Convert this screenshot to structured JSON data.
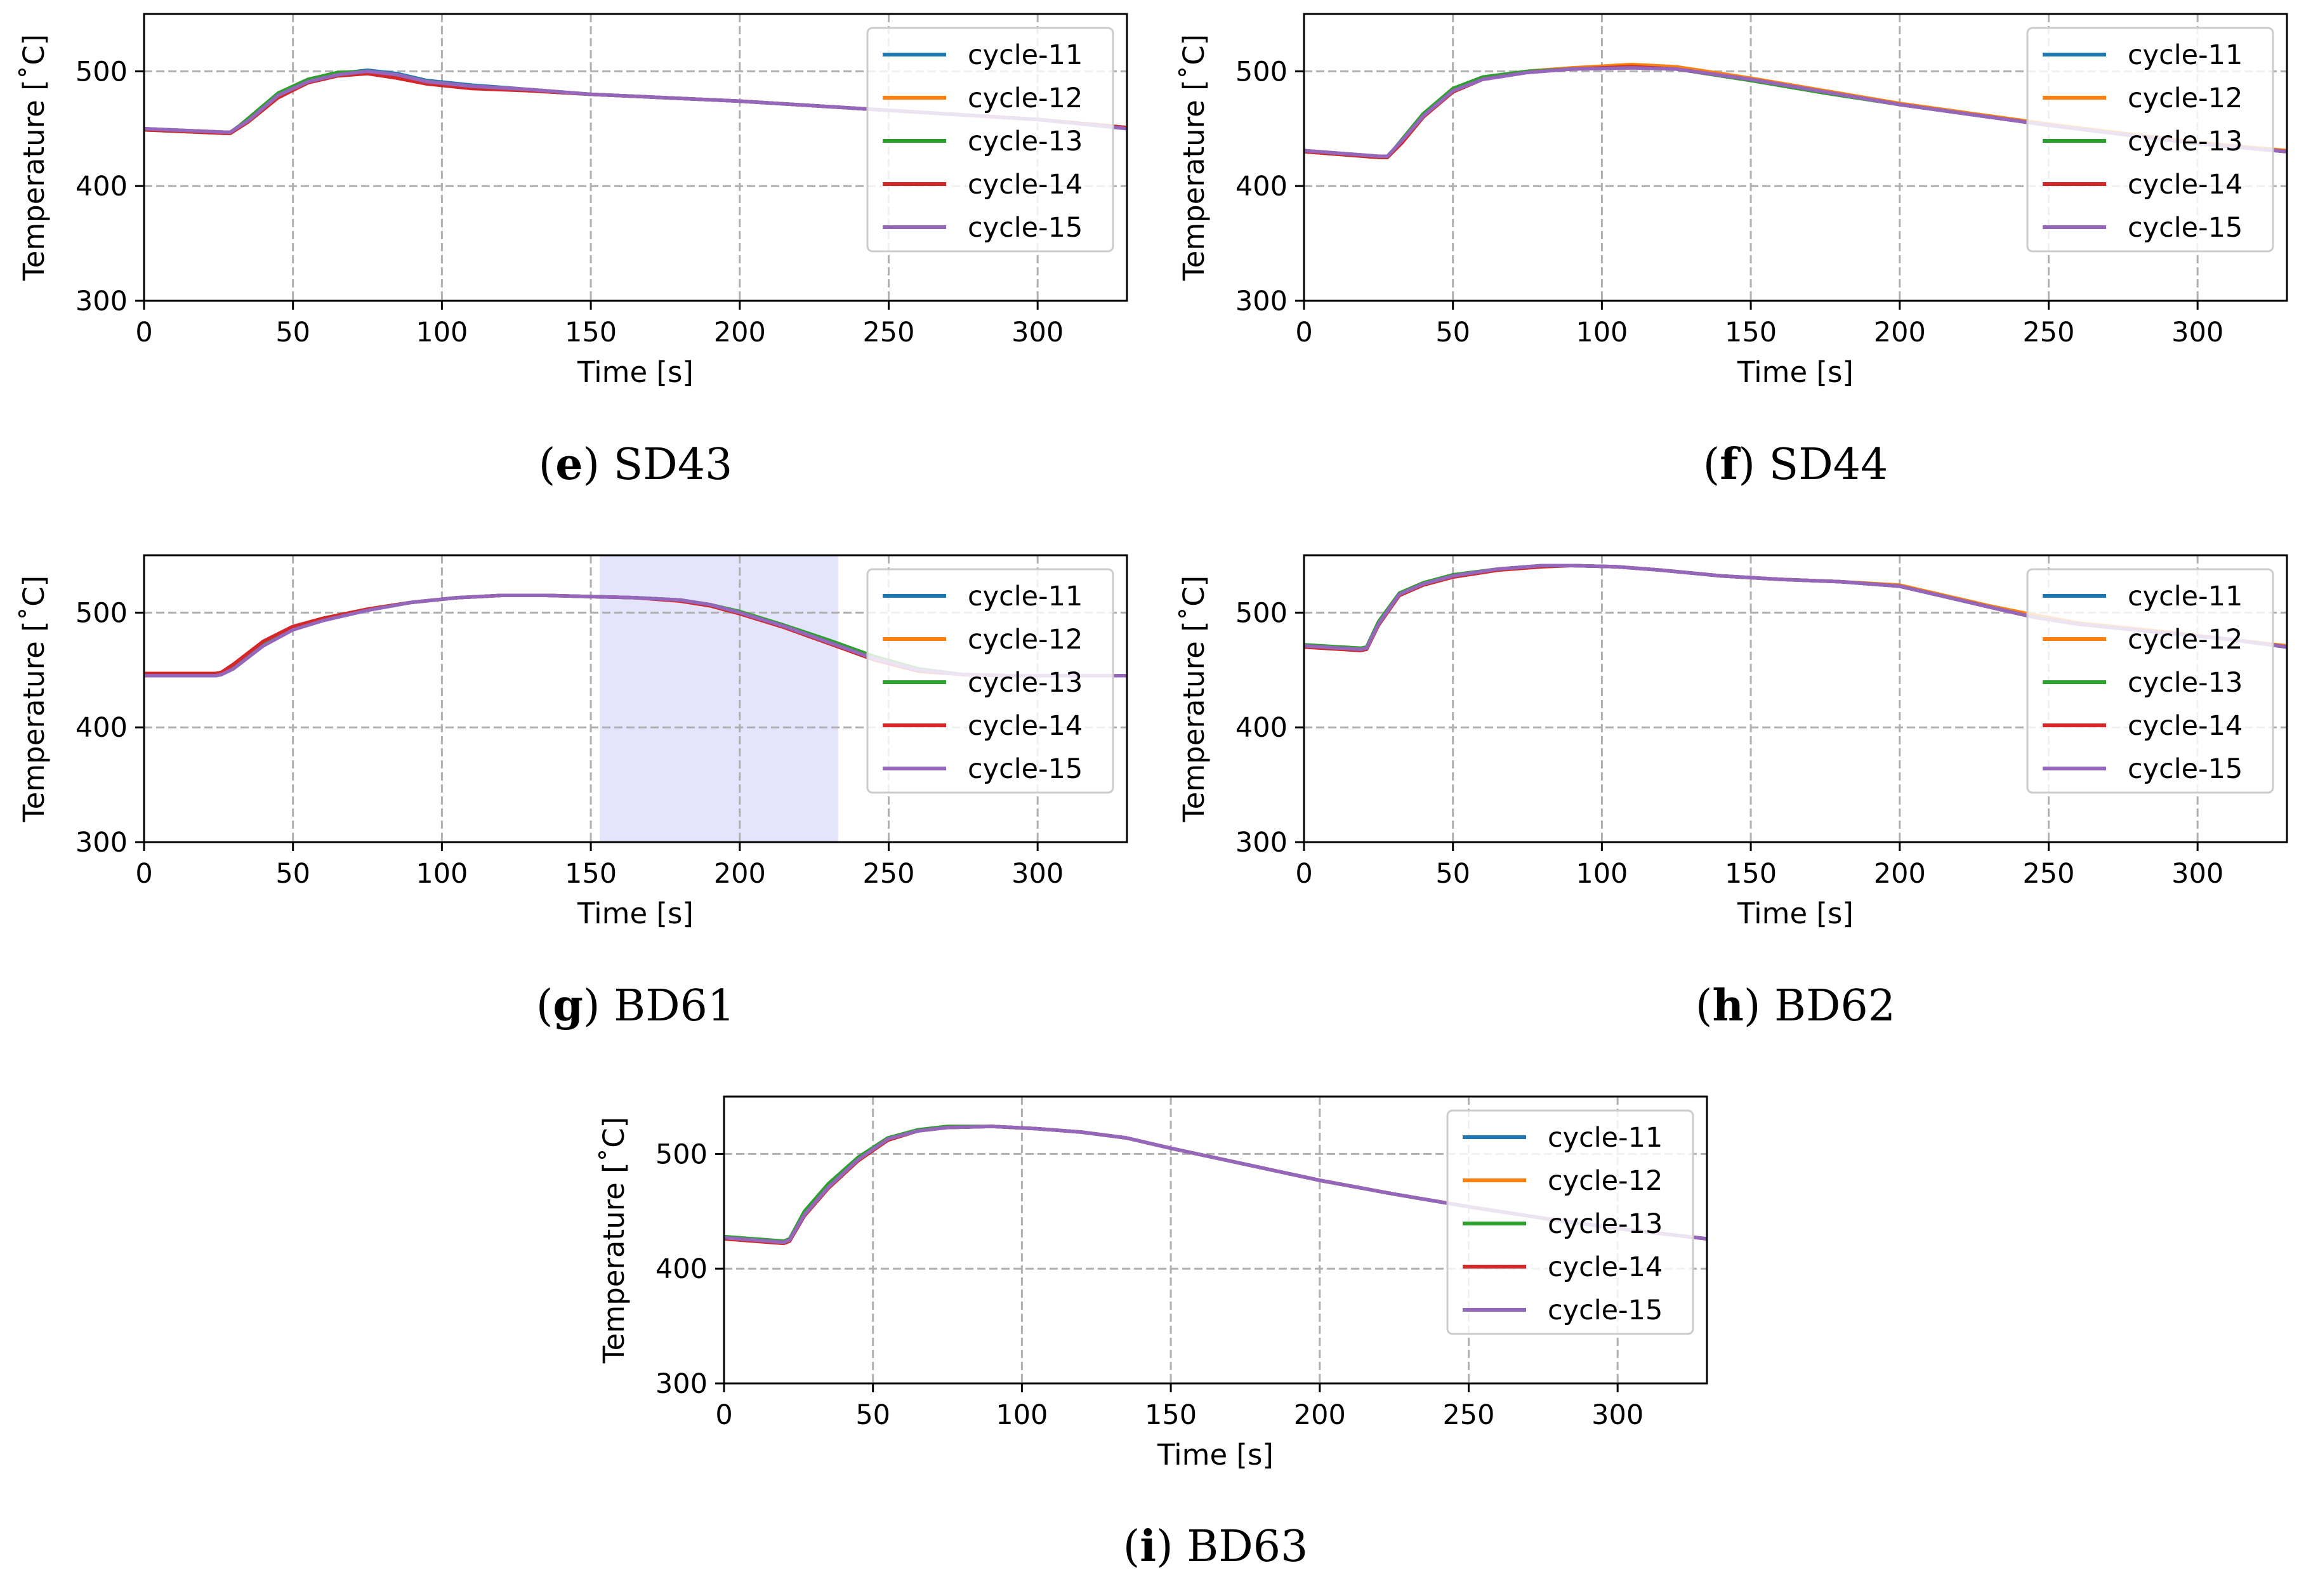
{
  "figure": {
    "series_colors": {
      "cycle-11": "#1f77b4",
      "cycle-12": "#ff7f0e",
      "cycle-13": "#2ca02c",
      "cycle-14": "#d62728",
      "cycle-15": "#9467bd"
    },
    "highlight_color": "#e4e4fc"
  },
  "chart_data": [
    {
      "id": "SD43",
      "type": "line",
      "caption_letter": "e",
      "caption_text": "SD43",
      "xlabel": "Time [s]",
      "ylabel": "Temperature [˚C]",
      "xlim": [
        0,
        330
      ],
      "ylim": [
        300,
        550
      ],
      "xticks": [
        0,
        50,
        100,
        150,
        200,
        250,
        300
      ],
      "yticks": [
        300,
        400,
        500
      ],
      "grid": true,
      "legend_position": "top-right",
      "x": [
        0,
        27,
        29,
        35,
        45,
        55,
        65,
        75,
        85,
        95,
        110,
        130,
        150,
        175,
        200,
        225,
        250,
        275,
        300,
        330
      ],
      "series": [
        {
          "name": "cycle-11",
          "values": [
            450,
            447,
            447,
            458,
            480,
            492,
            498,
            501,
            498,
            492,
            488,
            484,
            480,
            477,
            474,
            470,
            466,
            462,
            458,
            451
          ]
        },
        {
          "name": "cycle-12",
          "values": [
            450,
            447,
            447,
            457,
            479,
            491,
            497,
            500,
            497,
            491,
            487,
            484,
            480,
            477,
            474,
            470,
            466,
            462,
            458,
            451
          ]
        },
        {
          "name": "cycle-13",
          "values": [
            449,
            446,
            446,
            459,
            481,
            493,
            499,
            500,
            496,
            490,
            486,
            483,
            480,
            477,
            474,
            470,
            466,
            462,
            458,
            451
          ]
        },
        {
          "name": "cycle-14",
          "values": [
            449,
            446,
            446,
            456,
            477,
            490,
            496,
            498,
            494,
            489,
            485,
            483,
            480,
            477,
            474,
            470,
            466,
            462,
            458,
            451
          ]
        },
        {
          "name": "cycle-15",
          "values": [
            450,
            447,
            447,
            457,
            479,
            491,
            497,
            500,
            497,
            491,
            487,
            484,
            480,
            477,
            474,
            470,
            466,
            462,
            458,
            450
          ]
        }
      ]
    },
    {
      "id": "SD44",
      "type": "line",
      "caption_letter": "f",
      "caption_text": "SD44",
      "xlabel": "Time [s]",
      "ylabel": "Temperature [˚C]",
      "xlim": [
        0,
        330
      ],
      "ylim": [
        300,
        550
      ],
      "xticks": [
        0,
        50,
        100,
        150,
        200,
        250,
        300
      ],
      "yticks": [
        300,
        400,
        500
      ],
      "grid": true,
      "legend_position": "top-right",
      "x": [
        0,
        25,
        28,
        33,
        40,
        50,
        60,
        75,
        90,
        110,
        125,
        150,
        175,
        200,
        225,
        250,
        275,
        300,
        330
      ],
      "series": [
        {
          "name": "cycle-11",
          "values": [
            431,
            426,
            426,
            440,
            462,
            484,
            494,
            500,
            503,
            505,
            503,
            493,
            482,
            471,
            462,
            453,
            445,
            437,
            430
          ]
        },
        {
          "name": "cycle-12",
          "values": [
            431,
            426,
            426,
            439,
            461,
            483,
            494,
            500,
            503,
            506,
            504,
            494,
            483,
            472,
            463,
            454,
            446,
            438,
            431
          ]
        },
        {
          "name": "cycle-13",
          "values": [
            430,
            425,
            425,
            441,
            463,
            485,
            495,
            500,
            502,
            504,
            502,
            492,
            481,
            471,
            462,
            453,
            445,
            437,
            430
          ]
        },
        {
          "name": "cycle-14",
          "values": [
            430,
            425,
            425,
            438,
            460,
            482,
            493,
            499,
            502,
            504,
            502,
            493,
            482,
            471,
            462,
            453,
            445,
            437,
            430
          ]
        },
        {
          "name": "cycle-15",
          "values": [
            431,
            426,
            426,
            440,
            461,
            483,
            493,
            499,
            502,
            503,
            502,
            493,
            482,
            471,
            462,
            453,
            445,
            437,
            430
          ]
        }
      ]
    },
    {
      "id": "BD61",
      "type": "line",
      "caption_letter": "g",
      "caption_text": "BD61",
      "xlabel": "Time [s]",
      "ylabel": "Temperature [˚C]",
      "xlim": [
        0,
        330
      ],
      "ylim": [
        300,
        550
      ],
      "xticks": [
        0,
        50,
        100,
        150,
        200,
        250,
        300
      ],
      "yticks": [
        300,
        400,
        500
      ],
      "grid": true,
      "legend_position": "top-right",
      "highlight_span": [
        153,
        233
      ],
      "x": [
        0,
        24,
        26,
        30,
        40,
        50,
        60,
        75,
        90,
        105,
        120,
        135,
        150,
        165,
        180,
        190,
        200,
        215,
        230,
        245,
        260,
        275,
        290,
        310,
        330
      ],
      "series": [
        {
          "name": "cycle-11",
          "values": [
            445,
            445,
            446,
            452,
            472,
            486,
            494,
            503,
            509,
            513,
            515,
            515,
            514,
            513,
            511,
            507,
            500,
            488,
            474,
            460,
            450,
            446,
            445,
            445,
            445
          ]
        },
        {
          "name": "cycle-12",
          "values": [
            445,
            445,
            446,
            452,
            472,
            486,
            494,
            503,
            509,
            513,
            515,
            515,
            514,
            513,
            511,
            507,
            500,
            488,
            474,
            460,
            450,
            446,
            445,
            445,
            445
          ]
        },
        {
          "name": "cycle-13",
          "values": [
            446,
            446,
            447,
            453,
            473,
            487,
            495,
            503,
            509,
            513,
            515,
            515,
            514,
            513,
            511,
            507,
            501,
            489,
            476,
            462,
            451,
            446,
            445,
            445,
            445
          ]
        },
        {
          "name": "cycle-14",
          "values": [
            447,
            447,
            448,
            455,
            475,
            488,
            495,
            503,
            509,
            513,
            515,
            515,
            514,
            513,
            510,
            506,
            499,
            487,
            473,
            459,
            449,
            446,
            445,
            445,
            445
          ]
        },
        {
          "name": "cycle-15",
          "values": [
            445,
            445,
            446,
            451,
            471,
            485,
            493,
            502,
            509,
            513,
            515,
            515,
            514,
            513,
            511,
            507,
            500,
            488,
            474,
            460,
            450,
            446,
            445,
            445,
            445
          ]
        }
      ]
    },
    {
      "id": "BD62",
      "type": "line",
      "caption_letter": "h",
      "caption_text": "BD62",
      "xlabel": "Time [s]",
      "ylabel": "Temperature [˚C]",
      "xlim": [
        0,
        330
      ],
      "ylim": [
        300,
        550
      ],
      "xticks": [
        0,
        50,
        100,
        150,
        200,
        250,
        300
      ],
      "yticks": [
        300,
        400,
        500
      ],
      "grid": true,
      "legend_position": "top-right",
      "x": [
        0,
        19,
        21,
        25,
        32,
        40,
        50,
        65,
        80,
        90,
        105,
        120,
        140,
        160,
        180,
        200,
        215,
        230,
        245,
        260,
        275,
        290,
        310,
        330
      ],
      "series": [
        {
          "name": "cycle-11",
          "values": [
            471,
            468,
            469,
            490,
            516,
            525,
            532,
            538,
            541,
            541,
            540,
            537,
            532,
            529,
            527,
            523,
            514,
            505,
            496,
            490,
            486,
            482,
            477,
            470
          ]
        },
        {
          "name": "cycle-12",
          "values": [
            471,
            468,
            469,
            490,
            516,
            525,
            532,
            538,
            541,
            541,
            540,
            537,
            532,
            529,
            527,
            524,
            515,
            506,
            498,
            491,
            487,
            483,
            477,
            471
          ]
        },
        {
          "name": "cycle-13",
          "values": [
            472,
            469,
            470,
            492,
            517,
            526,
            533,
            538,
            541,
            541,
            540,
            537,
            532,
            529,
            527,
            523,
            514,
            505,
            496,
            490,
            486,
            482,
            477,
            470
          ]
        },
        {
          "name": "cycle-14",
          "values": [
            470,
            467,
            468,
            489,
            515,
            524,
            531,
            537,
            540,
            541,
            540,
            537,
            532,
            529,
            527,
            523,
            514,
            505,
            496,
            490,
            486,
            482,
            477,
            470
          ]
        },
        {
          "name": "cycle-15",
          "values": [
            471,
            468,
            469,
            490,
            516,
            525,
            532,
            538,
            541,
            541,
            540,
            537,
            532,
            529,
            527,
            523,
            514,
            505,
            496,
            490,
            486,
            482,
            477,
            470
          ]
        }
      ]
    },
    {
      "id": "BD63",
      "type": "line",
      "caption_letter": "i",
      "caption_text": "BD63",
      "xlabel": "Time [s]",
      "ylabel": "Temperature [˚C]",
      "xlim": [
        0,
        330
      ],
      "ylim": [
        300,
        550
      ],
      "xticks": [
        0,
        50,
        100,
        150,
        200,
        250,
        300
      ],
      "yticks": [
        300,
        400,
        500
      ],
      "grid": true,
      "legend_position": "top-right",
      "x": [
        0,
        20,
        22,
        27,
        35,
        45,
        55,
        65,
        75,
        90,
        105,
        120,
        135,
        150,
        175,
        200,
        225,
        250,
        275,
        300,
        330
      ],
      "series": [
        {
          "name": "cycle-11",
          "values": [
            427,
            423,
            425,
            448,
            472,
            496,
            513,
            520,
            523,
            524,
            522,
            519,
            514,
            505,
            491,
            477,
            465,
            454,
            444,
            435,
            426
          ]
        },
        {
          "name": "cycle-12",
          "values": [
            427,
            423,
            425,
            448,
            472,
            496,
            513,
            520,
            523,
            524,
            522,
            519,
            514,
            505,
            491,
            477,
            465,
            454,
            444,
            435,
            426
          ]
        },
        {
          "name": "cycle-13",
          "values": [
            428,
            424,
            426,
            450,
            474,
            497,
            514,
            521,
            524,
            524,
            522,
            519,
            514,
            505,
            491,
            477,
            465,
            454,
            444,
            435,
            426
          ]
        },
        {
          "name": "cycle-14",
          "values": [
            426,
            422,
            424,
            446,
            470,
            494,
            512,
            520,
            523,
            524,
            522,
            519,
            514,
            505,
            491,
            477,
            465,
            454,
            444,
            435,
            426
          ]
        },
        {
          "name": "cycle-15",
          "values": [
            427,
            423,
            425,
            447,
            471,
            495,
            513,
            520,
            523,
            524,
            522,
            519,
            514,
            505,
            491,
            477,
            465,
            454,
            444,
            435,
            426
          ]
        }
      ]
    }
  ]
}
